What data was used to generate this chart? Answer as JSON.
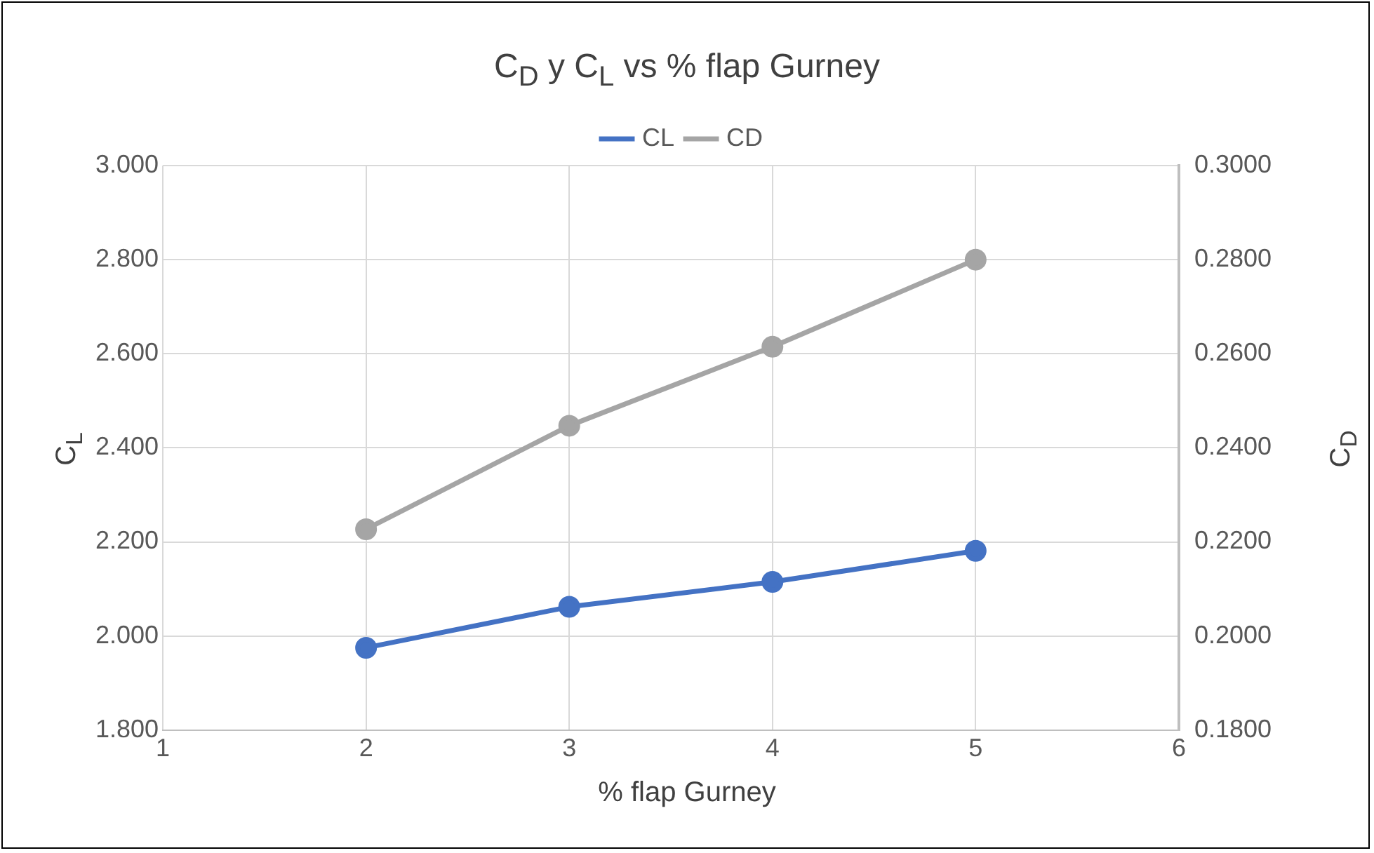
{
  "chart_data": {
    "type": "line",
    "title": "C$_{D}$ y C$_{L}$ vs % flap Gurney",
    "xlabel": "% flap Gurney",
    "ylabel": "C$_{L}$",
    "y2label": "C$_{D}$",
    "x": [
      2,
      3,
      4,
      5
    ],
    "series": [
      {
        "name": "CL",
        "color": "#4472c4",
        "values": [
          1.975,
          2.062,
          2.115,
          2.181
        ]
      },
      {
        "name": "CD",
        "color": "#a5a5a5",
        "values": [
          0.2227,
          0.2447,
          0.2615,
          0.28
        ],
        "axis": "y2"
      }
    ],
    "xlim": [
      1,
      6
    ],
    "xticks": [
      1,
      2,
      3,
      4,
      5,
      6
    ],
    "ylim": [
      1.8,
      3.0
    ],
    "yticks": [
      {
        "value": 1.8,
        "label": "1.800"
      },
      {
        "value": 2.0,
        "label": "2.000"
      },
      {
        "value": 2.2,
        "label": "2.200"
      },
      {
        "value": 2.4,
        "label": "2.400"
      },
      {
        "value": 2.6,
        "label": "2.600"
      },
      {
        "value": 2.8,
        "label": "2.800"
      },
      {
        "value": 3.0,
        "label": "3.000"
      }
    ],
    "y2lim": [
      0.18,
      0.3
    ],
    "y2ticks": [
      {
        "value": 0.18,
        "label": "0.1800"
      },
      {
        "value": 0.2,
        "label": "0.2000"
      },
      {
        "value": 0.22,
        "label": "0.2200"
      },
      {
        "value": 0.24,
        "label": "0.2400"
      },
      {
        "value": 0.26,
        "label": "0.2600"
      },
      {
        "value": 0.28,
        "label": "0.2800"
      },
      {
        "value": 0.3,
        "label": "0.3000"
      }
    ],
    "grid": true,
    "legend": "top",
    "marker": "circle",
    "line_style": "solid"
  }
}
